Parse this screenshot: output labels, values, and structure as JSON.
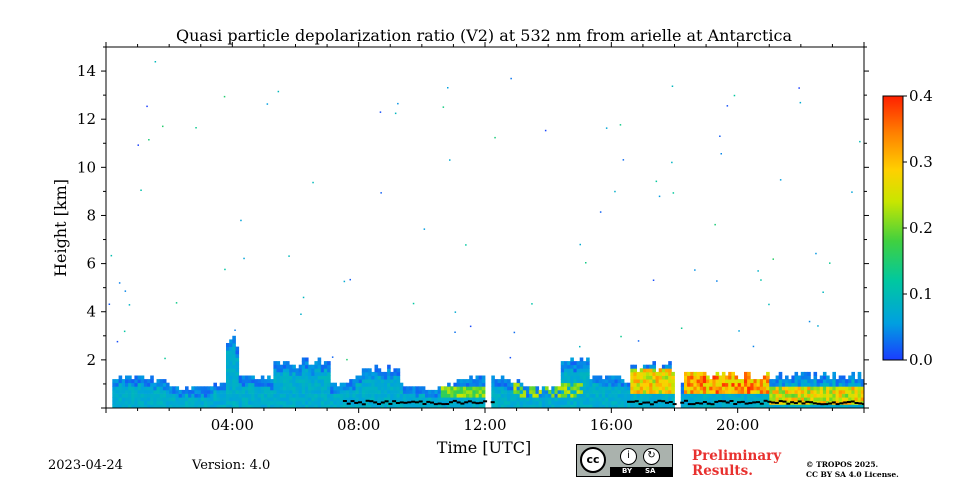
{
  "chart_data": {
    "type": "heatmap",
    "title": "Quasi particle depolarization ratio (V2) at 532 nm from arielle at Antarctica",
    "xlabel": "Time [UTC]",
    "ylabel": "Height [km]",
    "xlim_hours": [
      0,
      24
    ],
    "ylim_km": [
      0,
      15
    ],
    "x_ticks": [
      {
        "value": 4,
        "label": "04:00"
      },
      {
        "value": 8,
        "label": "08:00"
      },
      {
        "value": 12,
        "label": "12:00"
      },
      {
        "value": 16,
        "label": "16:00"
      },
      {
        "value": 20,
        "label": "20:00"
      }
    ],
    "y_ticks": [
      {
        "value": 2,
        "label": "2"
      },
      {
        "value": 4,
        "label": "4"
      },
      {
        "value": 6,
        "label": "6"
      },
      {
        "value": 8,
        "label": "8"
      },
      {
        "value": 10,
        "label": "10"
      },
      {
        "value": 12,
        "label": "12"
      },
      {
        "value": 14,
        "label": "14"
      }
    ],
    "colorbar": {
      "range": [
        0.0,
        0.4
      ],
      "ticks": [
        {
          "value": 0.0,
          "label": "0.0"
        },
        {
          "value": 0.1,
          "label": "0.1"
        },
        {
          "value": 0.2,
          "label": "0.2"
        },
        {
          "value": 0.3,
          "label": "0.3"
        },
        {
          "value": 0.4,
          "label": "0.4"
        }
      ],
      "colormap": [
        "#1a3cff",
        "#00a0e0",
        "#00c8a0",
        "#40d040",
        "#c8e600",
        "#ffd000",
        "#ff8000",
        "#ff2000"
      ]
    },
    "layers": [
      {
        "name": "boundary-layer-signal",
        "time_start": 0.2,
        "time_end": 24,
        "height_min_km": 0,
        "height_max_km": 1.8,
        "typical_value": 0.06
      },
      {
        "name": "elevated-depolarization-afternoon",
        "time_start": 16.5,
        "time_end": 18,
        "height_min_km": 0.5,
        "height_max_km": 1.6,
        "typical_value": 0.28
      },
      {
        "name": "high-depolarization-evening",
        "time_start": 18.2,
        "time_end": 21,
        "height_min_km": 0.5,
        "height_max_km": 1.5,
        "typical_value": 0.33
      }
    ],
    "data_gaps_hours": [
      [
        11.95,
        12.15
      ],
      [
        17.95,
        18.15
      ]
    ],
    "grid": false
  },
  "footer": {
    "date": "2023-04-24",
    "version": "Version: 4.0",
    "preliminary_line1": "Preliminary",
    "preliminary_line2": "Results.",
    "copyright_line1": "© TROPOS 2025.",
    "copyright_line2": "CC BY SA 4.0 License.",
    "license_badge_text": "cc",
    "license_by": "BY",
    "license_sa": "SA"
  }
}
